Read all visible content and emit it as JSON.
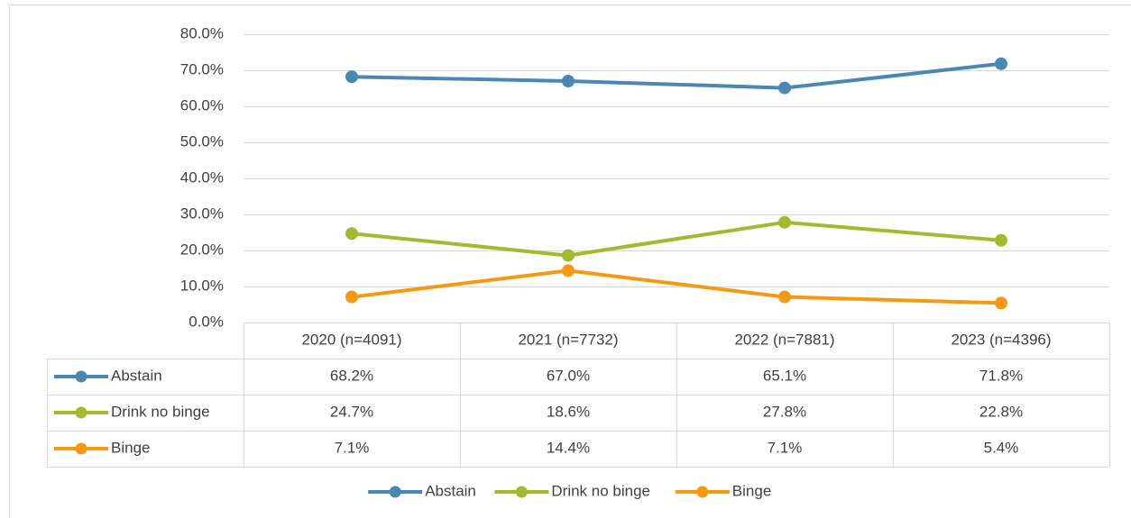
{
  "chart_data": {
    "type": "line",
    "categories": [
      "2020 (n=4091)",
      "2021 (n=7732)",
      "2022 (n=7881)",
      "2023 (n=4396)"
    ],
    "series": [
      {
        "name": "Abstain",
        "color": "#4a88b4",
        "values": [
          68.2,
          67.0,
          65.1,
          71.8
        ],
        "value_labels": [
          "68.2%",
          "67.0%",
          "65.1%",
          "71.8%"
        ]
      },
      {
        "name": "Drink no binge",
        "color": "#a2bb2e",
        "values": [
          24.7,
          18.6,
          27.8,
          22.8
        ],
        "value_labels": [
          "24.7%",
          "18.6%",
          "27.8%",
          "22.8%"
        ]
      },
      {
        "name": "Binge",
        "color": "#f59a10",
        "values": [
          7.1,
          14.4,
          7.1,
          5.4
        ],
        "value_labels": [
          "7.1%",
          "14.4%",
          "7.1%",
          "5.4%"
        ]
      }
    ],
    "ylim": [
      0,
      80
    ],
    "yticks": [
      {
        "value": 0,
        "label": "0.0%"
      },
      {
        "value": 10,
        "label": "10.0%"
      },
      {
        "value": 20,
        "label": "20.0%"
      },
      {
        "value": 30,
        "label": "30.0%"
      },
      {
        "value": 40,
        "label": "40.0%"
      },
      {
        "value": 50,
        "label": "50.0%"
      },
      {
        "value": 60,
        "label": "60.0%"
      },
      {
        "value": 70,
        "label": "70.0%"
      },
      {
        "value": 80,
        "label": "80.0%"
      }
    ],
    "grid": true,
    "legend": "bottom"
  }
}
